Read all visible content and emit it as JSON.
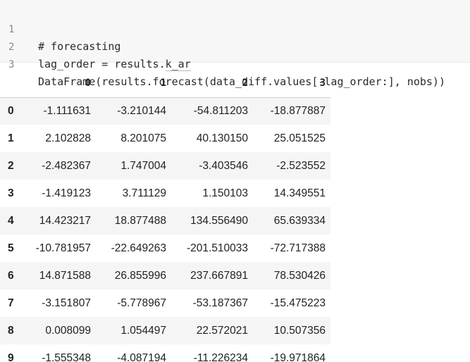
{
  "code_cell": {
    "lines": [
      {
        "number": "1",
        "text": "# forecasting"
      },
      {
        "number": "2",
        "text_before": "lag_order = results.",
        "text_marked": "k_ar"
      },
      {
        "number": "3",
        "text": "DataFrame(results.forecast(data_diff.values[-lag_order:], nobs))"
      }
    ]
  },
  "dataframe": {
    "columns": [
      "0",
      "1",
      "2",
      "3"
    ],
    "rows": [
      {
        "index": "0",
        "values": [
          "-1.111631",
          "-3.210144",
          "-54.811203",
          "-18.877887"
        ]
      },
      {
        "index": "1",
        "values": [
          "2.102828",
          "8.201075",
          "40.130150",
          "25.051525"
        ]
      },
      {
        "index": "2",
        "values": [
          "-2.482367",
          "1.747004",
          "-3.403546",
          "-2.523552"
        ]
      },
      {
        "index": "3",
        "values": [
          "-1.419123",
          "3.711129",
          "1.150103",
          "14.349551"
        ]
      },
      {
        "index": "4",
        "values": [
          "14.423217",
          "18.877488",
          "134.556490",
          "65.639334"
        ]
      },
      {
        "index": "5",
        "values": [
          "-10.781957",
          "-22.649263",
          "-201.510033",
          "-72.717388"
        ]
      },
      {
        "index": "6",
        "values": [
          "14.871588",
          "26.855996",
          "237.667891",
          "78.530426"
        ]
      },
      {
        "index": "7",
        "values": [
          "-3.151807",
          "-5.778967",
          "-53.187367",
          "-15.475223"
        ]
      },
      {
        "index": "8",
        "values": [
          "0.008099",
          "1.054497",
          "22.572021",
          "10.507356"
        ]
      },
      {
        "index": "9",
        "values": [
          "-1.555348",
          "-4.087194",
          "-11.226234",
          "-19.971864"
        ]
      }
    ]
  }
}
